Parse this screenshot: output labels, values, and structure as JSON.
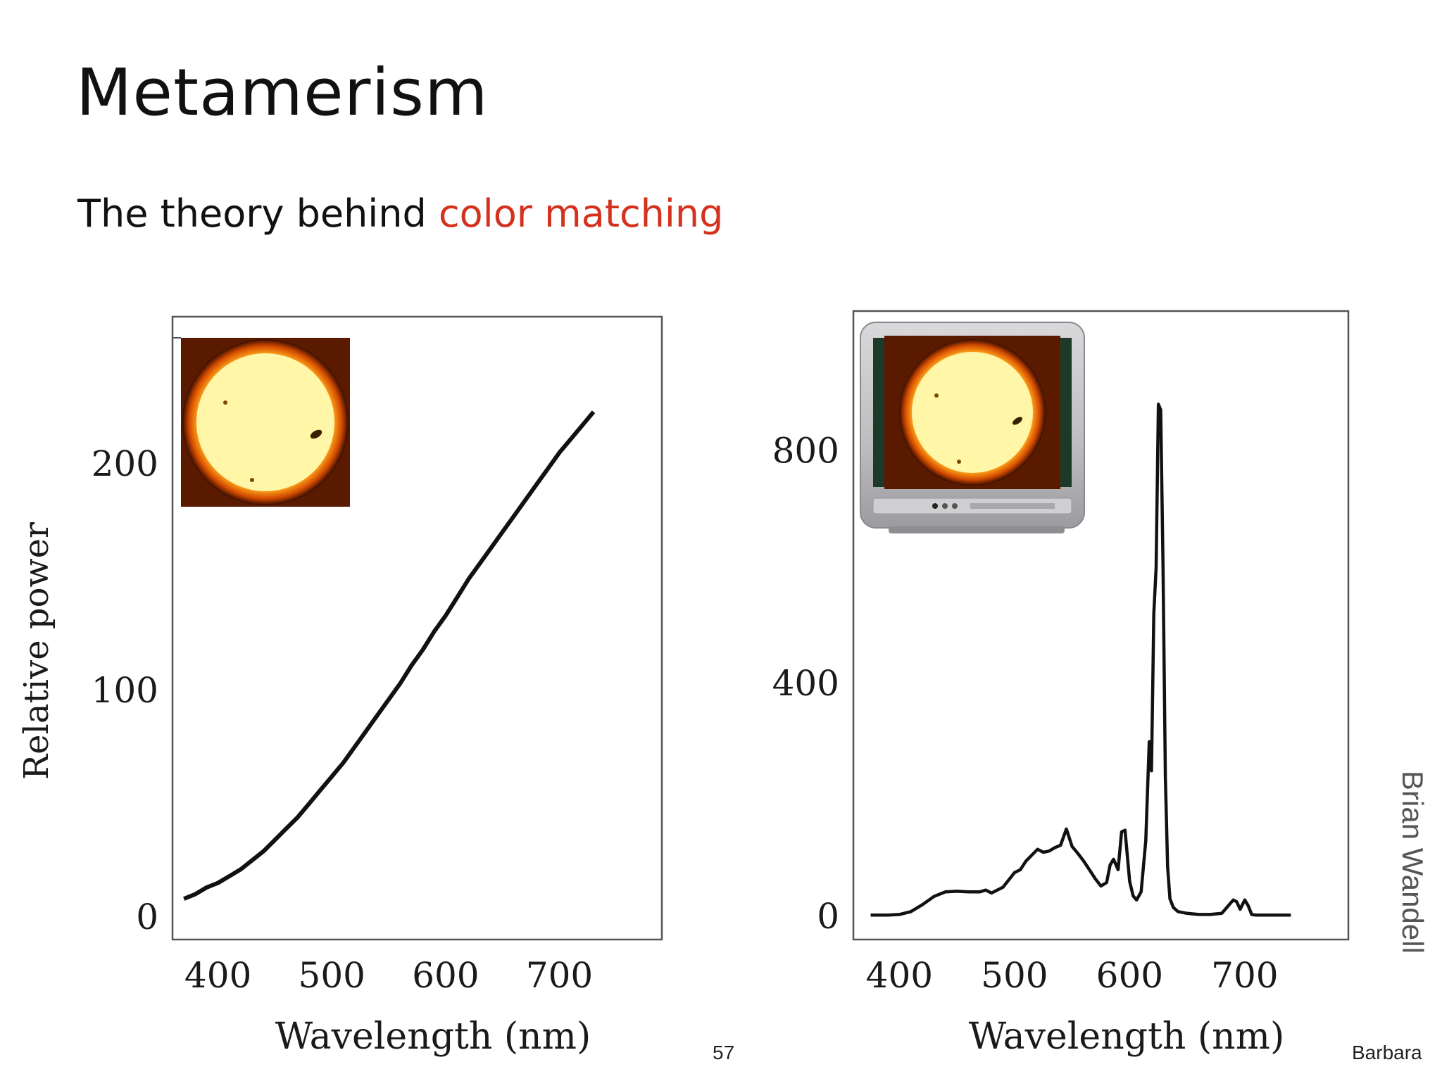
{
  "slide": {
    "title": "Metamerism",
    "subtitle_prefix": "The theory behind ",
    "subtitle_accent": "color matching",
    "credit": "Brian Wandell",
    "page_number": "57",
    "footer_right": "Barbara",
    "accent_color": "#d4321e"
  },
  "chart_data": [
    {
      "type": "line",
      "xlabel": "Wavelength (nm)",
      "ylabel": "Relative power",
      "xticks": [
        400,
        500,
        600,
        700
      ],
      "yticks": [
        0,
        100,
        200
      ],
      "xlim": [
        360,
        790
      ],
      "ylim": [
        -10,
        265
      ],
      "inset": "sun-photo",
      "series": [
        {
          "x": [
            370,
            380,
            390,
            400,
            410,
            420,
            430,
            440,
            450,
            460,
            470,
            480,
            490,
            500,
            510,
            520,
            530,
            540,
            550,
            560,
            570,
            580,
            590,
            600,
            610,
            620,
            630,
            640,
            650,
            660,
            670,
            680,
            690,
            700,
            710,
            720,
            730
          ],
          "y": [
            8,
            10,
            13,
            15,
            18,
            21,
            25,
            29,
            34,
            39,
            44,
            50,
            56,
            62,
            68,
            75,
            82,
            89,
            96,
            103,
            111,
            118,
            126,
            133,
            141,
            149,
            156,
            163,
            170,
            177,
            184,
            191,
            198,
            205,
            211,
            217,
            223
          ]
        }
      ]
    },
    {
      "type": "line",
      "xlabel": "Wavelength (nm)",
      "ylabel": "",
      "xticks": [
        400,
        500,
        600,
        700
      ],
      "yticks": [
        0,
        400,
        800
      ],
      "xlim": [
        360,
        790
      ],
      "ylim": [
        -40,
        1040
      ],
      "inset": "tv-with-sun-photo",
      "series": [
        {
          "x": [
            375,
            390,
            400,
            410,
            420,
            430,
            440,
            450,
            460,
            470,
            475,
            480,
            490,
            500,
            505,
            510,
            515,
            520,
            525,
            530,
            535,
            540,
            545,
            550,
            555,
            560,
            565,
            570,
            575,
            580,
            583,
            586,
            590,
            593,
            596,
            600,
            603,
            606,
            610,
            614,
            617,
            619,
            621,
            623,
            625,
            627,
            629,
            631,
            633,
            635,
            638,
            642,
            650,
            660,
            670,
            680,
            690,
            693,
            696,
            700,
            703,
            706,
            710,
            740
          ],
          "y": [
            2,
            2,
            3,
            8,
            20,
            34,
            42,
            43,
            42,
            42,
            45,
            40,
            50,
            75,
            80,
            95,
            105,
            115,
            110,
            112,
            118,
            122,
            150,
            120,
            108,
            95,
            80,
            65,
            52,
            58,
            88,
            98,
            80,
            145,
            148,
            60,
            35,
            28,
            42,
            130,
            300,
            250,
            520,
            600,
            880,
            870,
            600,
            240,
            85,
            30,
            15,
            8,
            5,
            3,
            3,
            5,
            28,
            25,
            12,
            28,
            18,
            3,
            2,
            2
          ]
        }
      ]
    }
  ]
}
